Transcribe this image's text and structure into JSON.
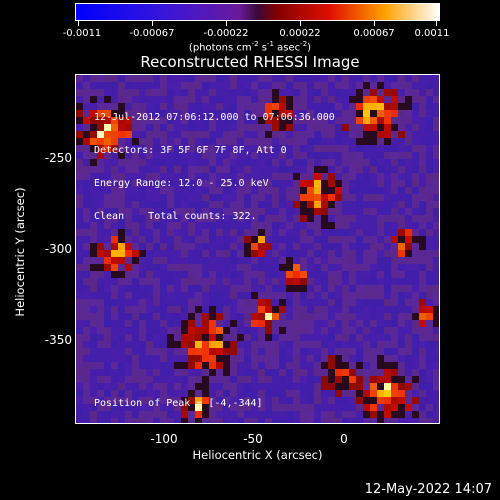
{
  "colorbar": {
    "tick_labels": [
      "-0.0011",
      "-0.00067",
      "-0.00022",
      "0.00022",
      "0.00067",
      "0.0011"
    ],
    "units_html": "(photons cm<sup>-2</sup> s<sup>-1</sup> asec<sup>-2</sup>)"
  },
  "image": {
    "title": "Reconstructed RHESSI Image",
    "info_lines": [
      "12-Jul-2012 07:06:12.000 to 07:06:36.000",
      "Detectors: 3F 5F 6F 7F 8F, Att 0",
      "Energy Range: 12.0 - 25.0 keV",
      "Clean    Total counts: 322."
    ],
    "peak_text": "Position of Peak = [-4,-344]",
    "xlabel": "Heliocentric X (arcsec)",
    "ylabel": "Heliocentric Y (arcsec)",
    "x_ticks": [
      "-100",
      "-50",
      "0"
    ],
    "y_ticks": [
      "-250",
      "-300",
      "-350"
    ],
    "x_range": [
      -143,
      43
    ],
    "y_range": [
      -393,
      -207
    ]
  },
  "footer": {
    "timestamp": "12-May-2022 14:07"
  },
  "colors": {
    "foreground": "#ffffff",
    "background": "#000000"
  },
  "colormap": "blue-purple-red-yellow-white"
}
